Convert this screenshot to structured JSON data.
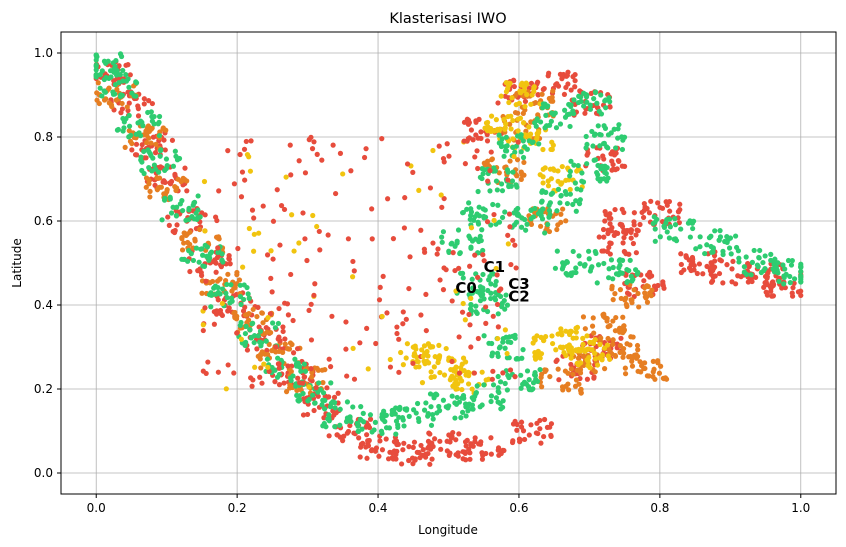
{
  "chart_data": {
    "type": "scatter",
    "title": "Klasterisasi IWO",
    "xlabel": "Longitude",
    "ylabel": "Latitude",
    "xlim": [
      -0.05,
      1.05
    ],
    "ylim": [
      -0.05,
      1.05
    ],
    "xticks": [
      0.0,
      0.2,
      0.4,
      0.6,
      0.8,
      1.0
    ],
    "yticks": [
      0.0,
      0.2,
      0.4,
      0.6,
      0.8,
      1.0
    ],
    "xtick_labels": [
      "0.0",
      "0.2",
      "0.4",
      "0.6",
      "0.8",
      "1.0"
    ],
    "ytick_labels": [
      "0.0",
      "0.2",
      "0.4",
      "0.6",
      "0.8",
      "1.0"
    ],
    "grid": true,
    "colors": {
      "red": "#e74c3c",
      "orange": "#e67e22",
      "yellow": "#f1c40f",
      "green": "#2ecc71"
    },
    "density_regions": [
      {
        "color": "red",
        "points": [
          [
            0.02,
            0.95
          ],
          [
            0.05,
            0.88
          ],
          [
            0.08,
            0.78
          ],
          [
            0.1,
            0.7
          ],
          [
            0.13,
            0.6
          ],
          [
            0.16,
            0.5
          ],
          [
            0.2,
            0.4
          ],
          [
            0.24,
            0.32
          ],
          [
            0.28,
            0.24
          ],
          [
            0.32,
            0.16
          ],
          [
            0.36,
            0.1
          ],
          [
            0.4,
            0.06
          ],
          [
            0.45,
            0.05
          ],
          [
            0.5,
            0.07
          ],
          [
            0.55,
            0.06
          ],
          [
            0.62,
            0.1
          ],
          [
            0.68,
            0.25
          ],
          [
            0.72,
            0.3
          ],
          [
            0.78,
            0.45
          ],
          [
            0.85,
            0.5
          ],
          [
            0.9,
            0.48
          ],
          [
            0.95,
            0.47
          ],
          [
            0.98,
            0.45
          ],
          [
            0.7,
            0.88
          ],
          [
            0.72,
            0.75
          ],
          [
            0.65,
            0.93
          ],
          [
            0.6,
            0.91
          ],
          [
            0.55,
            0.82
          ],
          [
            0.74,
            0.55
          ],
          [
            0.75,
            0.6
          ],
          [
            0.8,
            0.62
          ]
        ]
      },
      {
        "color": "green",
        "points": [
          [
            0.01,
            0.97
          ],
          [
            0.03,
            0.92
          ],
          [
            0.06,
            0.83
          ],
          [
            0.09,
            0.74
          ],
          [
            0.12,
            0.63
          ],
          [
            0.15,
            0.52
          ],
          [
            0.19,
            0.42
          ],
          [
            0.23,
            0.33
          ],
          [
            0.27,
            0.25
          ],
          [
            0.31,
            0.19
          ],
          [
            0.35,
            0.14
          ],
          [
            0.4,
            0.12
          ],
          [
            0.45,
            0.14
          ],
          [
            0.5,
            0.16
          ],
          [
            0.55,
            0.18
          ],
          [
            0.6,
            0.22
          ],
          [
            0.52,
            0.55
          ],
          [
            0.55,
            0.62
          ],
          [
            0.57,
            0.7
          ],
          [
            0.6,
            0.78
          ],
          [
            0.65,
            0.85
          ],
          [
            0.7,
            0.88
          ],
          [
            0.72,
            0.8
          ],
          [
            0.7,
            0.72
          ],
          [
            0.66,
            0.65
          ],
          [
            0.62,
            0.6
          ],
          [
            0.68,
            0.5
          ],
          [
            0.74,
            0.48
          ],
          [
            0.82,
            0.58
          ],
          [
            0.88,
            0.55
          ],
          [
            0.94,
            0.5
          ],
          [
            0.99,
            0.48
          ],
          [
            0.56,
            0.4
          ],
          [
            0.58,
            0.3
          ],
          [
            0.54,
            0.45
          ]
        ]
      },
      {
        "color": "orange",
        "points": [
          [
            0.03,
            0.9
          ],
          [
            0.07,
            0.8
          ],
          [
            0.1,
            0.68
          ],
          [
            0.15,
            0.55
          ],
          [
            0.18,
            0.45
          ],
          [
            0.22,
            0.36
          ],
          [
            0.26,
            0.28
          ],
          [
            0.3,
            0.22
          ],
          [
            0.58,
            0.72
          ],
          [
            0.6,
            0.82
          ],
          [
            0.62,
            0.88
          ],
          [
            0.64,
            0.6
          ],
          [
            0.72,
            0.35
          ],
          [
            0.74,
            0.3
          ],
          [
            0.76,
            0.42
          ],
          [
            0.7,
            0.27
          ],
          [
            0.78,
            0.25
          ],
          [
            0.66,
            0.22
          ]
        ]
      },
      {
        "color": "yellow",
        "points": [
          [
            0.6,
            0.9
          ],
          [
            0.62,
            0.8
          ],
          [
            0.58,
            0.82
          ],
          [
            0.68,
            0.32
          ],
          [
            0.7,
            0.28
          ],
          [
            0.65,
            0.3
          ],
          [
            0.5,
            0.25
          ],
          [
            0.53,
            0.22
          ],
          [
            0.46,
            0.28
          ],
          [
            0.66,
            0.7
          ]
        ]
      }
    ],
    "centroids": [
      {
        "label": "C0",
        "x": 0.525,
        "y": 0.44
      },
      {
        "label": "C1",
        "x": 0.565,
        "y": 0.49
      },
      {
        "label": "C3",
        "x": 0.6,
        "y": 0.45
      },
      {
        "label": "C2",
        "x": 0.6,
        "y": 0.42
      }
    ]
  }
}
